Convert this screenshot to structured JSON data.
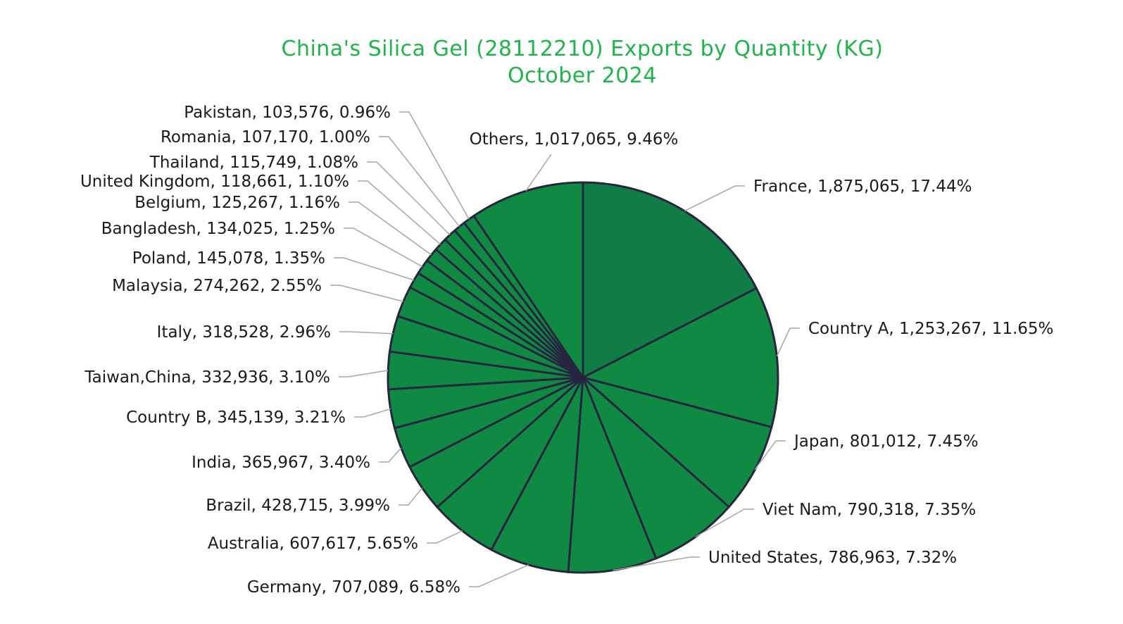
{
  "chart_data": {
    "type": "pie",
    "title_line1": "China's Silica Gel (28112210) Exports by Quantity (KG)",
    "title_line2": "October 2024",
    "slices": [
      {
        "name": "France",
        "value": 1875065,
        "percent": "17.44%",
        "label": "France, 1,875,065, 17.44%"
      },
      {
        "name": "Country A",
        "value": 1253267,
        "percent": "11.65%",
        "label": "Country A, 1,253,267, 11.65%"
      },
      {
        "name": "Japan",
        "value": 801012,
        "percent": "7.45%",
        "label": "Japan, 801,012, 7.45%"
      },
      {
        "name": "Viet Nam",
        "value": 790318,
        "percent": "7.35%",
        "label": "Viet Nam, 790,318, 7.35%"
      },
      {
        "name": "United States",
        "value": 786963,
        "percent": "7.32%",
        "label": "United States, 786,963, 7.32%"
      },
      {
        "name": "Germany",
        "value": 707089,
        "percent": "6.58%",
        "label": "Germany, 707,089, 6.58%"
      },
      {
        "name": "Australia",
        "value": 607617,
        "percent": "5.65%",
        "label": "Australia, 607,617, 5.65%"
      },
      {
        "name": "Brazil",
        "value": 428715,
        "percent": "3.99%",
        "label": "Brazil, 428,715, 3.99%"
      },
      {
        "name": "India",
        "value": 365967,
        "percent": "3.40%",
        "label": "India, 365,967, 3.40%"
      },
      {
        "name": "Country B",
        "value": 345139,
        "percent": "3.21%",
        "label": "Country B, 345,139, 3.21%"
      },
      {
        "name": "Taiwan,China",
        "value": 332936,
        "percent": "3.10%",
        "label": "Taiwan,China, 332,936, 3.10%"
      },
      {
        "name": "Italy",
        "value": 318528,
        "percent": "2.96%",
        "label": "Italy, 318,528, 2.96%"
      },
      {
        "name": "Malaysia",
        "value": 274262,
        "percent": "2.55%",
        "label": "Malaysia, 274,262, 2.55%"
      },
      {
        "name": "Poland",
        "value": 145078,
        "percent": "1.35%",
        "label": "Poland, 145,078, 1.35%"
      },
      {
        "name": "Bangladesh",
        "value": 134025,
        "percent": "1.25%",
        "label": "Bangladesh, 134,025, 1.25%"
      },
      {
        "name": "Belgium",
        "value": 125267,
        "percent": "1.16%",
        "label": "Belgium, 125,267, 1.16%"
      },
      {
        "name": "United Kingdom",
        "value": 118661,
        "percent": "1.10%",
        "label": "United Kingdom, 118,661, 1.10%"
      },
      {
        "name": "Thailand",
        "value": 115749,
        "percent": "1.08%",
        "label": "Thailand, 115,749, 1.08%"
      },
      {
        "name": "Romania",
        "value": 107170,
        "percent": "1.00%",
        "label": "Romania, 107,170, 1.00%"
      },
      {
        "name": "Pakistan",
        "value": 103576,
        "percent": "0.96%",
        "label": "Pakistan, 103,576, 0.96%"
      },
      {
        "name": "Others",
        "value": 1017065,
        "percent": "9.46%",
        "label": "Others, 1,017,065, 9.46%"
      }
    ]
  },
  "colors": {
    "title": "#1db54a",
    "slice_fill": "#108a43",
    "slice_fill_largest": "#0f7d45",
    "slice_stroke": "#262640",
    "leader_line": "#a6a6a6"
  }
}
